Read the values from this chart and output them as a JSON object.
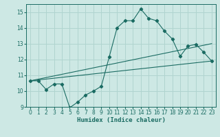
{
  "title": "",
  "xlabel": "Humidex (Indice chaleur)",
  "xlim": [
    -0.5,
    23.5
  ],
  "ylim": [
    9,
    15.5
  ],
  "yticks": [
    9,
    10,
    11,
    12,
    13,
    14,
    15
  ],
  "xticks": [
    0,
    1,
    2,
    3,
    4,
    5,
    6,
    7,
    8,
    9,
    10,
    11,
    12,
    13,
    14,
    15,
    16,
    17,
    18,
    19,
    20,
    21,
    22,
    23
  ],
  "background_color": "#cde8e4",
  "grid_color": "#b0d4cf",
  "line_color": "#1a6b62",
  "line1": {
    "x": [
      0,
      1,
      2,
      3,
      4,
      5,
      6,
      7,
      8,
      9,
      10,
      11,
      12,
      13,
      14,
      15,
      16,
      17,
      18,
      19,
      20,
      21,
      22,
      23
    ],
    "y": [
      10.65,
      10.65,
      10.1,
      10.45,
      10.45,
      8.95,
      9.3,
      9.75,
      10.0,
      10.3,
      12.15,
      14.0,
      14.45,
      14.45,
      15.2,
      14.6,
      14.45,
      13.8,
      13.3,
      12.2,
      12.85,
      12.95,
      12.45,
      11.9
    ]
  },
  "line2": {
    "x": [
      0,
      23
    ],
    "y": [
      10.65,
      13.0
    ]
  },
  "line3": {
    "x": [
      0,
      23
    ],
    "y": [
      10.65,
      11.9
    ]
  }
}
